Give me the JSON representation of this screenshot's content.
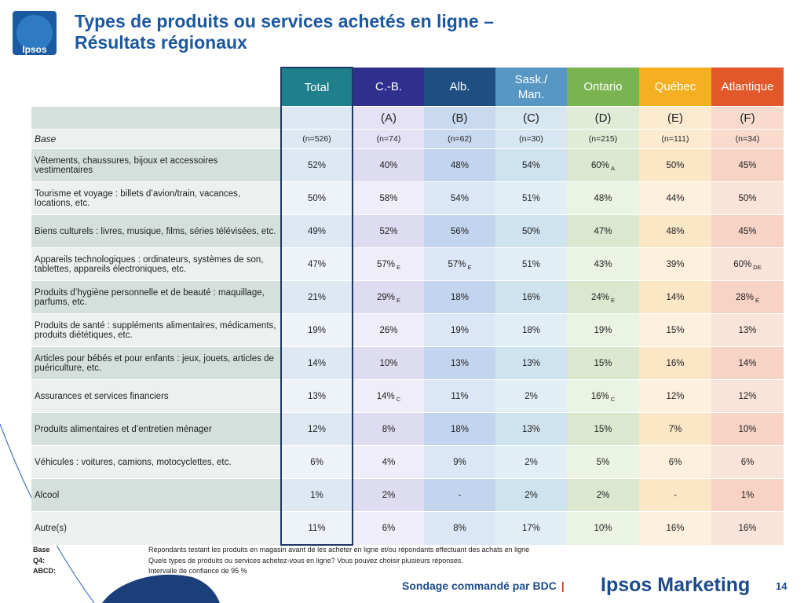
{
  "logo": {
    "text": "Ipsos"
  },
  "title": {
    "line1": "Types de produits ou services achetés en ligne –",
    "line2": "Résultats régionaux"
  },
  "table": {
    "columns": [
      {
        "header": "Total",
        "letter": "",
        "base": "(n=526)"
      },
      {
        "header": "C.-B.",
        "letter": "(A)",
        "base": "(n=74)"
      },
      {
        "header": "Alb.",
        "letter": "(B)",
        "base": "(n=62)"
      },
      {
        "header": "Sask./\nMan.",
        "letter": "(C)",
        "base": "(n=30)"
      },
      {
        "header": "Ontario",
        "letter": "(D)",
        "base": "(n=215)"
      },
      {
        "header": "Québec",
        "letter": "(E)",
        "base": "(n=111)"
      },
      {
        "header": "Atlantique",
        "letter": "(F)",
        "base": "(n=34)"
      }
    ],
    "base_label": "Base",
    "rows": [
      {
        "label": "Vêtements, chaussures, bijoux et accessoires vestimentaires",
        "values": [
          "52%",
          "40%",
          "48%",
          "54%",
          "60%",
          "50%",
          "45%"
        ],
        "sig": [
          "",
          "",
          "",
          "",
          "A",
          "",
          ""
        ]
      },
      {
        "label": "Tourisme et voyage : billets d’avion/train, vacances, locations, etc.",
        "values": [
          "50%",
          "58%",
          "54%",
          "51%",
          "48%",
          "44%",
          "50%"
        ],
        "sig": [
          "",
          "",
          "",
          "",
          "",
          "",
          ""
        ]
      },
      {
        "label": "Biens culturels : livres, musique, films, séries télévisées, etc.",
        "values": [
          "49%",
          "52%",
          "56%",
          "50%",
          "47%",
          "48%",
          "45%"
        ],
        "sig": [
          "",
          "",
          "",
          "",
          "",
          "",
          ""
        ]
      },
      {
        "label": "Appareils technologiques : ordinateurs, systèmes de son, tablettes, appareils électroniques, etc.",
        "values": [
          "47%",
          "57%",
          "57%",
          "51%",
          "43%",
          "39%",
          "60%"
        ],
        "sig": [
          "",
          "E",
          "E",
          "",
          "",
          "",
          "DE"
        ]
      },
      {
        "label": "Produits d’hygiène personnelle et de beauté : maquillage, parfums, etc.",
        "values": [
          "21%",
          "29%",
          "18%",
          "16%",
          "24%",
          "14%",
          "28%"
        ],
        "sig": [
          "",
          "E",
          "",
          "",
          "E",
          "",
          "E"
        ]
      },
      {
        "label": "Produits de santé : suppléments alimentaires, médicaments, produits diététiques, etc.",
        "values": [
          "19%",
          "26%",
          "19%",
          "18%",
          "19%",
          "15%",
          "13%"
        ],
        "sig": [
          "",
          "",
          "",
          "",
          "",
          "",
          ""
        ]
      },
      {
        "label": "Articles pour bébés et pour enfants : jeux, jouets, articles de puériculture, etc.",
        "values": [
          "14%",
          "10%",
          "13%",
          "13%",
          "15%",
          "16%",
          "14%"
        ],
        "sig": [
          "",
          "",
          "",
          "",
          "",
          "",
          ""
        ]
      },
      {
        "label": "Assurances et services financiers",
        "values": [
          "13%",
          "14%",
          "11%",
          "2%",
          "16%",
          "12%",
          "12%"
        ],
        "sig": [
          "",
          "C",
          "",
          "",
          "C",
          "",
          ""
        ]
      },
      {
        "label": "Produits alimentaires et d’entretien ménager",
        "values": [
          "12%",
          "8%",
          "18%",
          "13%",
          "15%",
          "7%",
          "10%"
        ],
        "sig": [
          "",
          "",
          "",
          "",
          "",
          "",
          ""
        ]
      },
      {
        "label": "Véhicules : voitures, camions, motocyclettes, etc.",
        "values": [
          "6%",
          "4%",
          "9%",
          "2%",
          "5%",
          "6%",
          "6%"
        ],
        "sig": [
          "",
          "",
          "",
          "",
          "",
          "",
          ""
        ]
      },
      {
        "label": "Alcool",
        "values": [
          "1%",
          "2%",
          "-",
          "2%",
          "2%",
          "-",
          "1%"
        ],
        "sig": [
          "",
          "",
          "",
          "",
          "",
          "",
          ""
        ]
      },
      {
        "label": "Autre(s)",
        "values": [
          "11%",
          "6%",
          "8%",
          "17%",
          "10%",
          "16%",
          "16%"
        ],
        "sig": [
          "",
          "",
          "",
          "",
          "",
          "",
          ""
        ]
      }
    ]
  },
  "notes": [
    {
      "key": "Base",
      "text": "Répondants testant les produits en magasin avant de les acheter en ligne et/ou répondants effectuant des achats en ligne"
    },
    {
      "key": "Q4:",
      "text": "Quels types de produits ou services achetez-vous en ligne? Vous pouvez choisir plusieurs réponses."
    },
    {
      "key": "ABCD:",
      "text": "Intervalle de confiance de 95 %"
    }
  ],
  "footer": {
    "text": "Sondage commandé par BDC",
    "separator": "|",
    "brand": "Ipsos Marketing",
    "page": "14"
  },
  "colors": {
    "title": "#1c58a0",
    "total": "#1f7f8a",
    "cb": "#2f2f8e",
    "alb": "#1f4e82",
    "sask": "#5896c4",
    "ontario": "#7ab450",
    "quebec": "#f5b021",
    "atlantique": "#e3582b"
  }
}
